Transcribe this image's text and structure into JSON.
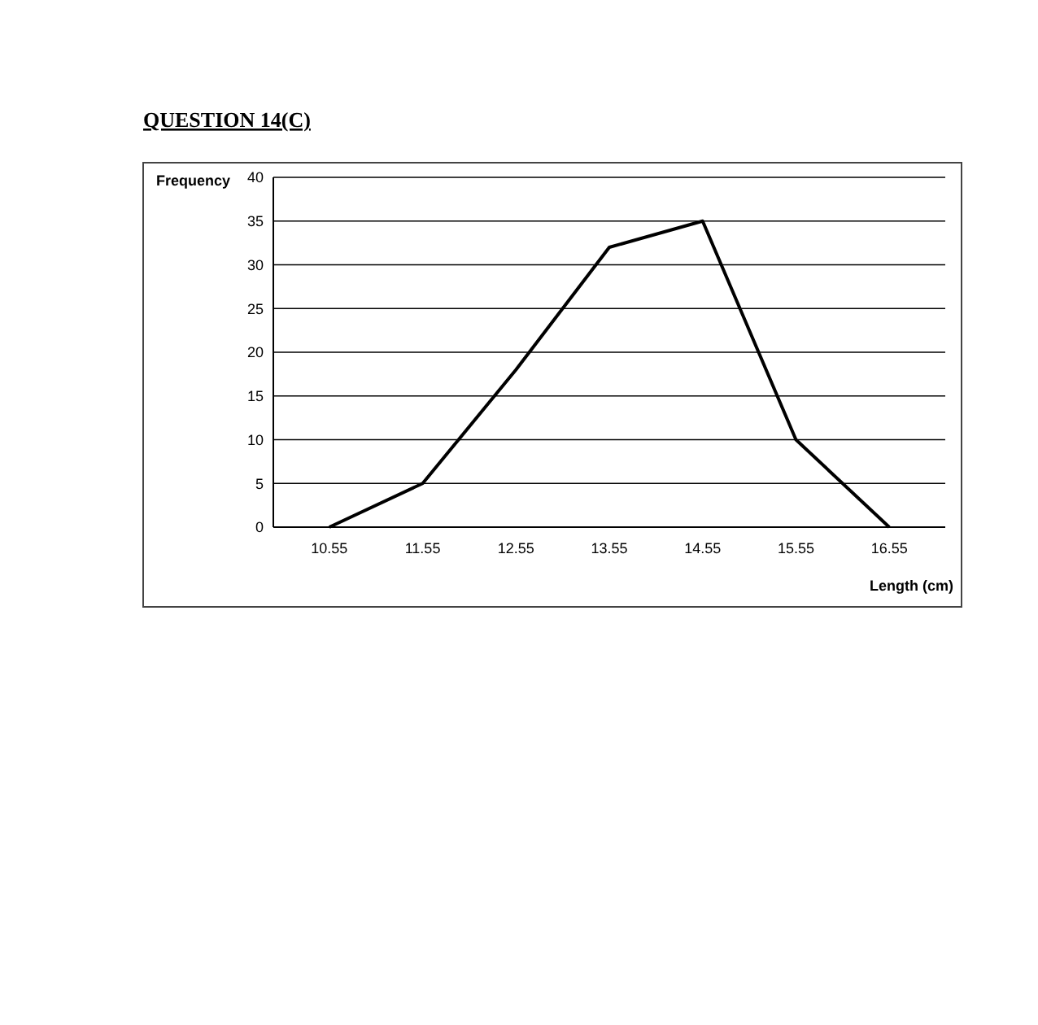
{
  "chart_data": {
    "type": "line",
    "title": "QUESTION 14(C)",
    "xlabel": "Length (cm)",
    "ylabel": "Frequency",
    "categories": [
      "10.55",
      "11.55",
      "12.55",
      "13.55",
      "14.55",
      "15.55",
      "16.55"
    ],
    "series": [
      {
        "color": "#000000",
        "values": [
          0,
          5,
          18,
          32,
          35,
          10,
          0
        ]
      }
    ],
    "ylim": [
      0,
      40
    ],
    "yticks": [
      0,
      5,
      10,
      15,
      20,
      25,
      30,
      35,
      40
    ],
    "grid": "y",
    "marker": "none",
    "line_style": "solid"
  }
}
